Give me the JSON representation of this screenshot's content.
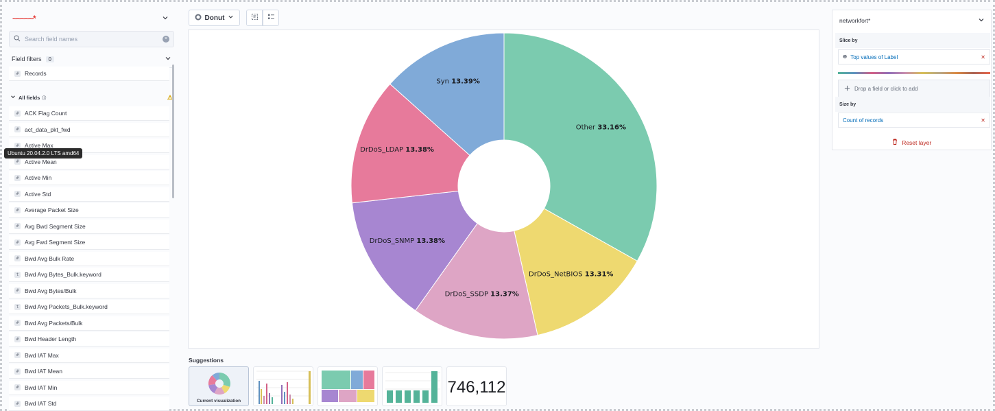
{
  "sidebar": {
    "index_pattern": "networkfort*",
    "search_placeholder": "Search field names",
    "field_filters_label": "Field filters",
    "field_filters_count": "0",
    "records_label": "Records",
    "all_fields_label": "All fields",
    "fields": [
      {
        "name": "ACK Flag Count",
        "type": "#"
      },
      {
        "name": "act_data_pkt_fwd",
        "type": "#"
      },
      {
        "name": "Active Max",
        "type": "#"
      },
      {
        "name": "Active Mean",
        "type": "#"
      },
      {
        "name": "Active Min",
        "type": "#"
      },
      {
        "name": "Active Std",
        "type": "#"
      },
      {
        "name": "Average Packet Size",
        "type": "#"
      },
      {
        "name": "Avg Bwd Segment Size",
        "type": "#"
      },
      {
        "name": "Avg Fwd Segment Size",
        "type": "#"
      },
      {
        "name": "Bwd Avg Bulk Rate",
        "type": "#"
      },
      {
        "name": "Bwd Avg Bytes_Bulk.keyword",
        "type": "t"
      },
      {
        "name": "Bwd Avg Bytes/Bulk",
        "type": "#"
      },
      {
        "name": "Bwd Avg Packets_Bulk.keyword",
        "type": "t"
      },
      {
        "name": "Bwd Avg Packets/Bulk",
        "type": "#"
      },
      {
        "name": "Bwd Header Length",
        "type": "#"
      },
      {
        "name": "Bwd IAT Max",
        "type": "#"
      },
      {
        "name": "Bwd IAT Mean",
        "type": "#"
      },
      {
        "name": "Bwd IAT Min",
        "type": "#"
      },
      {
        "name": "Bwd IAT Std",
        "type": "#"
      }
    ]
  },
  "tooltip": "Ubuntu 20.04.2.0 LTS amd64",
  "toolbar": {
    "chart_type_label": "Donut"
  },
  "chart_data": {
    "type": "pie",
    "variant": "donut",
    "slices": [
      {
        "label": "Other",
        "pct": "33.16%",
        "value": 33.16,
        "color": "#7bcbaf"
      },
      {
        "label": "DrDoS_NetBIOS",
        "pct": "13.31%",
        "value": 13.31,
        "color": "#eed970"
      },
      {
        "label": "DrDoS_SSDP",
        "pct": "13.37%",
        "value": 13.37,
        "color": "#dea5c5"
      },
      {
        "label": "DrDoS_SNMP",
        "pct": "13.38%",
        "value": 13.38,
        "color": "#a786d1"
      },
      {
        "label": "DrDoS_LDAP",
        "pct": "13.38%",
        "value": 13.38,
        "color": "#e77a9b"
      },
      {
        "label": "Syn",
        "pct": "13.39%",
        "value": 13.39,
        "color": "#80aad8"
      }
    ]
  },
  "suggestions": {
    "title": "Suggestions",
    "current_label": "Current visualization",
    "metric_value": "746,112"
  },
  "config": {
    "index_pattern": "networkfort*",
    "slice_by_label": "Slice by",
    "slice_field": "Top values of Label",
    "drop_label": "Drop a field or click to add",
    "size_by_label": "Size by",
    "size_field": "Count of records",
    "reset_label": "Reset layer"
  }
}
